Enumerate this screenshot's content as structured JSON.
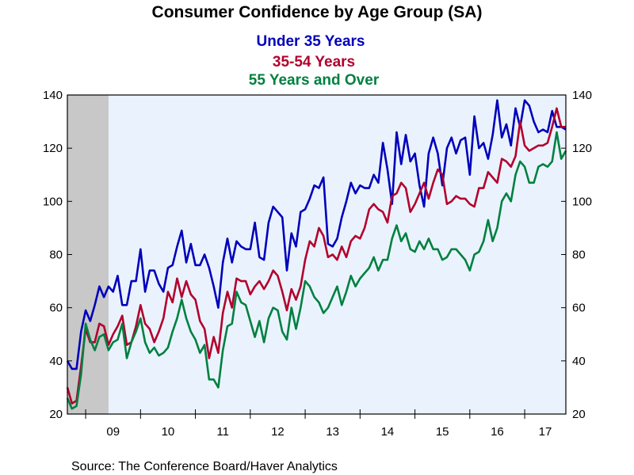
{
  "chart_data": {
    "type": "line",
    "title": "Consumer Confidence by Age Group (SA)",
    "source": "Source:  The Conference Board/Haver Analytics",
    "xlabel": "",
    "ylabel": "",
    "ylim": [
      20,
      140
    ],
    "y_ticks": [
      "20",
      "40",
      "60",
      "80",
      "100",
      "120",
      "140"
    ],
    "x_ticks": [
      "09",
      "10",
      "11",
      "12",
      "13",
      "14",
      "15",
      "16",
      "17"
    ],
    "x_range": [
      "2008-09",
      "2017-10"
    ],
    "recession_shading": [
      "2008-09",
      "2009-06"
    ],
    "grid": false,
    "legend_position": "top-center",
    "background_color": "#eaf3fd",
    "shading_color": "#c8c8c8",
    "series": [
      {
        "name": "Under 35 Years",
        "color": "#0000bb",
        "start": "2008-09",
        "values": [
          40,
          37,
          37,
          51,
          59,
          55,
          61,
          68,
          64,
          68,
          66,
          72,
          61,
          61,
          70,
          70,
          82,
          66,
          74,
          74,
          69,
          66,
          75,
          76,
          83,
          89,
          77,
          84,
          76,
          76,
          80,
          75,
          68,
          60,
          77,
          86,
          77,
          85,
          83,
          82,
          82,
          92,
          79,
          78,
          92,
          98,
          96,
          94,
          74,
          88,
          83,
          96,
          97,
          101,
          106,
          105,
          109,
          84,
          83,
          86,
          94,
          100,
          107,
          103,
          106,
          105,
          105,
          110,
          107,
          122,
          112,
          99,
          126,
          114,
          125,
          115,
          118,
          106,
          98,
          118,
          124,
          118,
          106,
          120,
          124,
          118,
          123,
          124,
          110,
          132,
          120,
          122,
          116,
          125,
          138,
          124,
          129,
          121,
          135,
          128,
          138,
          136,
          130,
          126,
          127,
          126,
          134,
          128,
          128,
          127
        ]
      },
      {
        "name": "35-54 Years",
        "color": "#b3002d",
        "start": "2008-09",
        "values": [
          30,
          24,
          25,
          38,
          52,
          47,
          47,
          54,
          53,
          46,
          50,
          53,
          57,
          46,
          47,
          53,
          61,
          54,
          52,
          47,
          51,
          56,
          66,
          62,
          71,
          64,
          70,
          65,
          63,
          55,
          52,
          41,
          49,
          43,
          58,
          66,
          60,
          71,
          70,
          70,
          65,
          68,
          70,
          67,
          70,
          74,
          72,
          66,
          59,
          67,
          63,
          68,
          78,
          85,
          83,
          90,
          87,
          79,
          80,
          78,
          83,
          79,
          85,
          87,
          86,
          90,
          97,
          99,
          97,
          96,
          92,
          102,
          103,
          107,
          105,
          96,
          99,
          103,
          107,
          101,
          107,
          112,
          110,
          99,
          100,
          102,
          101,
          101,
          99,
          98,
          105,
          105,
          111,
          109,
          107,
          116,
          115,
          113,
          117,
          130,
          121,
          119,
          120,
          121,
          121,
          122,
          128,
          135,
          128,
          128
        ]
      },
      {
        "name": "55 Years and Over",
        "color": "#008040",
        "start": "2008-09",
        "values": [
          26,
          22,
          23,
          35,
          54,
          48,
          44,
          49,
          50,
          44,
          47,
          48,
          54,
          41,
          47,
          51,
          56,
          47,
          43,
          45,
          42,
          43,
          45,
          51,
          56,
          63,
          56,
          51,
          48,
          43,
          46,
          33,
          33,
          30,
          44,
          53,
          54,
          66,
          62,
          61,
          55,
          49,
          55,
          47,
          56,
          60,
          59,
          51,
          48,
          60,
          52,
          60,
          70,
          68,
          64,
          62,
          58,
          60,
          64,
          68,
          61,
          66,
          72,
          68,
          71,
          73,
          75,
          79,
          74,
          78,
          78,
          86,
          91,
          85,
          88,
          82,
          81,
          85,
          82,
          86,
          82,
          82,
          78,
          79,
          82,
          82,
          80,
          78,
          74,
          80,
          81,
          85,
          93,
          85,
          90,
          100,
          103,
          100,
          110,
          115,
          113,
          107,
          107,
          113,
          114,
          113,
          115,
          126,
          116,
          119
        ]
      }
    ]
  }
}
